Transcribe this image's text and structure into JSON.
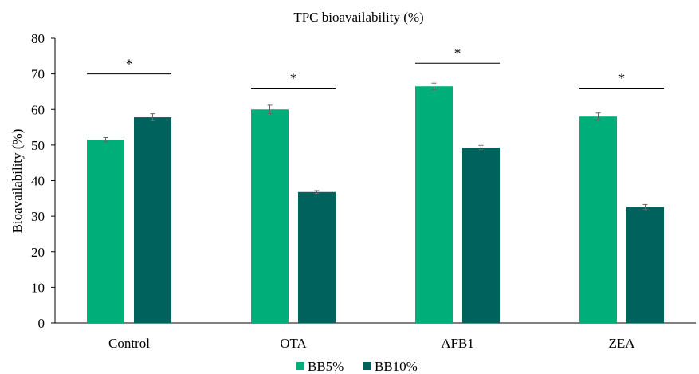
{
  "chart_data": {
    "type": "bar",
    "title": "TPC bioavailability (%)",
    "xlabel": "",
    "ylabel": "Bioavailability (%)",
    "ylim": [
      0,
      80
    ],
    "yticks": [
      0,
      10,
      20,
      30,
      40,
      50,
      60,
      70,
      80
    ],
    "categories": [
      "Control",
      "OTA",
      "AFB1",
      "ZEA"
    ],
    "series": [
      {
        "name": "BB5%",
        "color": "#00AE7A",
        "values": [
          51.5,
          60.0,
          66.5,
          58.0
        ],
        "errors": [
          0.6,
          1.2,
          0.9,
          1.0
        ]
      },
      {
        "name": "BB10%",
        "color": "#00625C",
        "values": [
          57.8,
          36.8,
          49.3,
          32.6
        ],
        "errors": [
          1.0,
          0.4,
          0.6,
          0.7
        ]
      }
    ],
    "significance": [
      {
        "category": "Control",
        "label": "*",
        "y": 70
      },
      {
        "category": "OTA",
        "label": "*",
        "y": 66
      },
      {
        "category": "AFB1",
        "label": "*",
        "y": 73
      },
      {
        "category": "ZEA",
        "label": "*",
        "y": 66
      }
    ],
    "legend_position": "bottom",
    "grid": false
  }
}
